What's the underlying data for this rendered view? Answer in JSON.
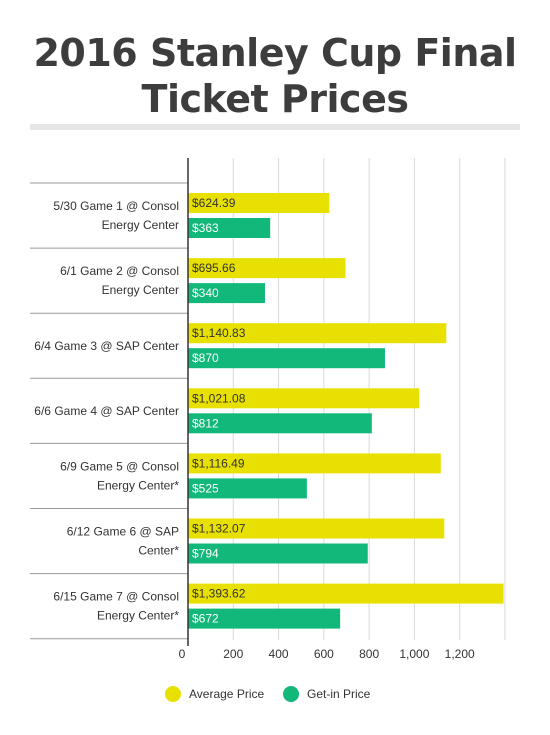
{
  "chart_data": {
    "type": "bar",
    "title_lines": [
      "2016 Stanley Cup Final",
      "Ticket Prices"
    ],
    "categories": [
      [
        "5/30 Game 1 @ Consol",
        "Energy Center"
      ],
      [
        "6/1 Game 2 @ Consol",
        "Energy Center"
      ],
      [
        "6/4 Game 3 @ SAP Center"
      ],
      [
        "6/6 Game 4 @ SAP Center"
      ],
      [
        "6/9 Game 5 @ Consol",
        "Energy Center*"
      ],
      [
        "6/12 Game 6 @ SAP",
        "Center*"
      ],
      [
        "6/15 Game 7 @ Consol",
        "Energy Center*"
      ]
    ],
    "series": [
      {
        "name": "Average Price",
        "color": "#e8e000",
        "values": [
          624.39,
          695.66,
          1140.83,
          1021.08,
          1116.49,
          1132.07,
          1393.62
        ],
        "labels": [
          "$624.39",
          "$695.66",
          "$1,140.83",
          "$1,021.08",
          "$1,116.49",
          "$1,132.07",
          "$1,393.62"
        ]
      },
      {
        "name": "Get-in Price",
        "color": "#12b87a",
        "values": [
          363,
          340,
          870,
          812,
          525,
          794,
          672
        ],
        "labels": [
          "$363",
          "$340",
          "$870",
          "$812",
          "$525",
          "$794",
          "$672"
        ]
      }
    ],
    "xlim": [
      0,
      1400
    ],
    "xticks": [
      0,
      200,
      400,
      600,
      800,
      1000,
      1200
    ],
    "xtick_labels": [
      "0",
      "200",
      "400",
      "600",
      "800",
      "1,000",
      "1,200"
    ],
    "grid": true,
    "legend_position": "bottom"
  }
}
